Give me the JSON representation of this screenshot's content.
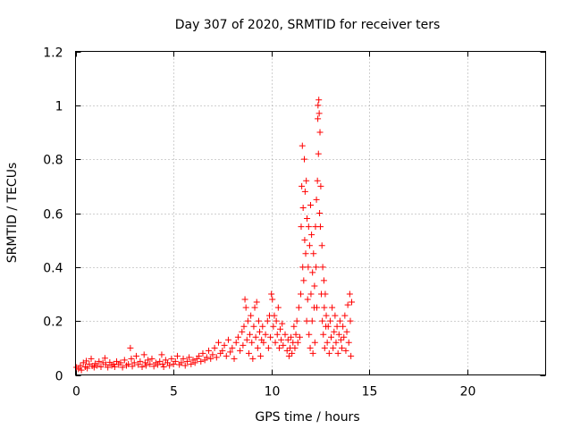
{
  "chart_data": {
    "type": "scatter",
    "title": "Day 307 of 2020, SRMTID for receiver ters",
    "xlabel": "GPS time / hours",
    "ylabel": "SRMTID / TECUs",
    "xlim": [
      0,
      24
    ],
    "ylim": [
      0,
      1.2
    ],
    "x_ticks": [
      0,
      5,
      10,
      15,
      20
    ],
    "x_tick_labels": [
      "0",
      "5",
      "10",
      "15",
      "20"
    ],
    "y_ticks": [
      0,
      0.2,
      0.4,
      0.6,
      0.8,
      1,
      1.2
    ],
    "y_tick_labels": [
      "0",
      "0.2",
      "0.4",
      "0.6",
      "0.8",
      "1",
      "1.2"
    ],
    "grid": true,
    "marker": "+",
    "series": [
      {
        "name": "SRMTID",
        "color": "#ff0000",
        "points": [
          [
            0.05,
            0.028
          ],
          [
            0.15,
            0.022
          ],
          [
            0.25,
            0.035
          ],
          [
            0.3,
            0.018
          ],
          [
            0.4,
            0.045
          ],
          [
            0.5,
            0.03
          ],
          [
            0.55,
            0.052
          ],
          [
            0.6,
            0.025
          ],
          [
            0.7,
            0.04
          ],
          [
            0.8,
            0.06
          ],
          [
            0.85,
            0.033
          ],
          [
            0.95,
            0.028
          ],
          [
            1.0,
            0.042
          ],
          [
            1.1,
            0.035
          ],
          [
            1.2,
            0.05
          ],
          [
            1.3,
            0.03
          ],
          [
            1.4,
            0.045
          ],
          [
            1.5,
            0.062
          ],
          [
            1.55,
            0.038
          ],
          [
            1.65,
            0.028
          ],
          [
            1.75,
            0.047
          ],
          [
            1.85,
            0.035
          ],
          [
            1.95,
            0.04
          ],
          [
            2.0,
            0.03
          ],
          [
            2.1,
            0.05
          ],
          [
            2.2,
            0.038
          ],
          [
            2.3,
            0.045
          ],
          [
            2.4,
            0.028
          ],
          [
            2.5,
            0.055
          ],
          [
            2.6,
            0.035
          ],
          [
            2.7,
            0.04
          ],
          [
            2.8,
            0.1
          ],
          [
            2.85,
            0.06
          ],
          [
            2.9,
            0.032
          ],
          [
            3.0,
            0.045
          ],
          [
            3.1,
            0.07
          ],
          [
            3.2,
            0.038
          ],
          [
            3.3,
            0.05
          ],
          [
            3.4,
            0.03
          ],
          [
            3.5,
            0.075
          ],
          [
            3.55,
            0.045
          ],
          [
            3.6,
            0.035
          ],
          [
            3.7,
            0.055
          ],
          [
            3.8,
            0.04
          ],
          [
            3.9,
            0.06
          ],
          [
            4.0,
            0.032
          ],
          [
            4.1,
            0.045
          ],
          [
            4.2,
            0.038
          ],
          [
            4.3,
            0.05
          ],
          [
            4.4,
            0.075
          ],
          [
            4.45,
            0.04
          ],
          [
            4.5,
            0.03
          ],
          [
            4.6,
            0.055
          ],
          [
            4.7,
            0.045
          ],
          [
            4.8,
            0.035
          ],
          [
            4.9,
            0.06
          ],
          [
            5.0,
            0.04
          ],
          [
            5.1,
            0.05
          ],
          [
            5.2,
            0.07
          ],
          [
            5.3,
            0.038
          ],
          [
            5.4,
            0.045
          ],
          [
            5.5,
            0.06
          ],
          [
            5.6,
            0.035
          ],
          [
            5.7,
            0.05
          ],
          [
            5.8,
            0.065
          ],
          [
            5.9,
            0.04
          ],
          [
            6.0,
            0.055
          ],
          [
            6.1,
            0.045
          ],
          [
            6.2,
            0.06
          ],
          [
            6.3,
            0.07
          ],
          [
            6.4,
            0.05
          ],
          [
            6.5,
            0.08
          ],
          [
            6.6,
            0.055
          ],
          [
            6.7,
            0.065
          ],
          [
            6.8,
            0.09
          ],
          [
            6.9,
            0.06
          ],
          [
            7.0,
            0.075
          ],
          [
            7.1,
            0.1
          ],
          [
            7.2,
            0.065
          ],
          [
            7.3,
            0.12
          ],
          [
            7.4,
            0.08
          ],
          [
            7.5,
            0.09
          ],
          [
            7.6,
            0.11
          ],
          [
            7.7,
            0.07
          ],
          [
            7.8,
            0.13
          ],
          [
            7.9,
            0.085
          ],
          [
            8.0,
            0.1
          ],
          [
            8.1,
            0.06
          ],
          [
            8.2,
            0.12
          ],
          [
            8.3,
            0.14
          ],
          [
            8.4,
            0.09
          ],
          [
            8.5,
            0.16
          ],
          [
            8.55,
            0.11
          ],
          [
            8.6,
            0.18
          ],
          [
            8.65,
            0.28
          ],
          [
            8.7,
            0.25
          ],
          [
            8.75,
            0.13
          ],
          [
            8.8,
            0.2
          ],
          [
            8.85,
            0.08
          ],
          [
            8.9,
            0.15
          ],
          [
            8.95,
            0.22
          ],
          [
            9.0,
            0.12
          ],
          [
            9.05,
            0.06
          ],
          [
            9.1,
            0.18
          ],
          [
            9.15,
            0.25
          ],
          [
            9.2,
            0.14
          ],
          [
            9.25,
            0.27
          ],
          [
            9.3,
            0.1
          ],
          [
            9.35,
            0.2
          ],
          [
            9.4,
            0.16
          ],
          [
            9.45,
            0.07
          ],
          [
            9.5,
            0.13
          ],
          [
            9.55,
            0.18
          ],
          [
            9.6,
            0.12
          ],
          [
            9.7,
            0.15
          ],
          [
            9.8,
            0.2
          ],
          [
            9.85,
            0.1
          ],
          [
            9.9,
            0.22
          ],
          [
            9.95,
            0.14
          ],
          [
            10.0,
            0.3
          ],
          [
            10.05,
            0.28
          ],
          [
            10.1,
            0.18
          ],
          [
            10.15,
            0.22
          ],
          [
            10.2,
            0.12
          ],
          [
            10.25,
            0.2
          ],
          [
            10.3,
            0.15
          ],
          [
            10.35,
            0.25
          ],
          [
            10.4,
            0.1
          ],
          [
            10.45,
            0.17
          ],
          [
            10.5,
            0.13
          ],
          [
            10.55,
            0.19
          ],
          [
            10.6,
            0.11
          ],
          [
            10.7,
            0.15
          ],
          [
            10.8,
            0.09
          ],
          [
            10.85,
            0.13
          ],
          [
            10.9,
            0.07
          ],
          [
            10.95,
            0.1
          ],
          [
            11.0,
            0.14
          ],
          [
            11.05,
            0.08
          ],
          [
            11.1,
            0.12
          ],
          [
            11.15,
            0.18
          ],
          [
            11.2,
            0.1
          ],
          [
            11.25,
            0.15
          ],
          [
            11.3,
            0.2
          ],
          [
            11.35,
            0.12
          ],
          [
            11.4,
            0.25
          ],
          [
            11.45,
            0.14
          ],
          [
            11.5,
            0.3
          ],
          [
            11.52,
            0.55
          ],
          [
            11.55,
            0.7
          ],
          [
            11.58,
            0.85
          ],
          [
            11.6,
            0.4
          ],
          [
            11.62,
            0.62
          ],
          [
            11.65,
            0.35
          ],
          [
            11.68,
            0.8
          ],
          [
            11.7,
            0.5
          ],
          [
            11.72,
            0.68
          ],
          [
            11.75,
            0.45
          ],
          [
            11.78,
            0.72
          ],
          [
            11.8,
            0.2
          ],
          [
            11.82,
            0.58
          ],
          [
            11.85,
            0.28
          ],
          [
            11.88,
            0.4
          ],
          [
            11.9,
            0.55
          ],
          [
            11.92,
            0.15
          ],
          [
            11.95,
            0.48
          ],
          [
            11.98,
            0.1
          ],
          [
            12.0,
            0.63
          ],
          [
            12.02,
            0.3
          ],
          [
            12.05,
            0.52
          ],
          [
            12.08,
            0.2
          ],
          [
            12.1,
            0.38
          ],
          [
            12.12,
            0.08
          ],
          [
            12.15,
            0.45
          ],
          [
            12.18,
            0.25
          ],
          [
            12.2,
            0.33
          ],
          [
            12.22,
            0.12
          ],
          [
            12.25,
            0.55
          ],
          [
            12.28,
            0.4
          ],
          [
            12.3,
            0.65
          ],
          [
            12.32,
            0.25
          ],
          [
            12.35,
            0.72
          ],
          [
            12.37,
            0.95
          ],
          [
            12.38,
            1.0
          ],
          [
            12.4,
            0.82
          ],
          [
            12.42,
            1.02
          ],
          [
            12.44,
            0.97
          ],
          [
            12.46,
            0.6
          ],
          [
            12.48,
            0.9
          ],
          [
            12.5,
            0.55
          ],
          [
            12.52,
            0.7
          ],
          [
            12.55,
            0.3
          ],
          [
            12.58,
            0.48
          ],
          [
            12.6,
            0.2
          ],
          [
            12.62,
            0.4
          ],
          [
            12.65,
            0.15
          ],
          [
            12.68,
            0.35
          ],
          [
            12.7,
            0.25
          ],
          [
            12.72,
            0.1
          ],
          [
            12.75,
            0.3
          ],
          [
            12.78,
            0.18
          ],
          [
            12.8,
            0.22
          ],
          [
            12.85,
            0.12
          ],
          [
            12.9,
            0.18
          ],
          [
            12.95,
            0.08
          ],
          [
            13.0,
            0.2
          ],
          [
            13.05,
            0.14
          ],
          [
            13.1,
            0.25
          ],
          [
            13.15,
            0.1
          ],
          [
            13.2,
            0.16
          ],
          [
            13.25,
            0.22
          ],
          [
            13.3,
            0.12
          ],
          [
            13.35,
            0.18
          ],
          [
            13.4,
            0.08
          ],
          [
            13.45,
            0.15
          ],
          [
            13.5,
            0.2
          ],
          [
            13.55,
            0.13
          ],
          [
            13.6,
            0.1
          ],
          [
            13.65,
            0.18
          ],
          [
            13.7,
            0.14
          ],
          [
            13.75,
            0.22
          ],
          [
            13.8,
            0.09
          ],
          [
            13.85,
            0.16
          ],
          [
            13.9,
            0.26
          ],
          [
            13.95,
            0.12
          ],
          [
            14.0,
            0.3
          ],
          [
            14.03,
            0.2
          ],
          [
            14.06,
            0.07
          ],
          [
            14.1,
            0.27
          ]
        ]
      }
    ]
  }
}
